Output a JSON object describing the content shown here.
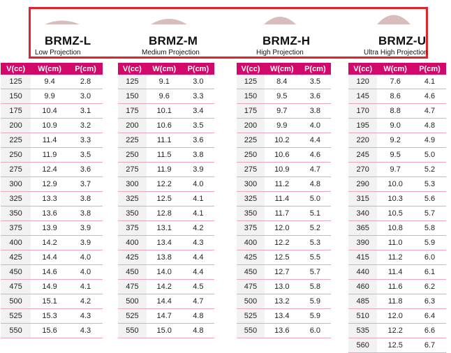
{
  "products": [
    {
      "name": "BRMZ-L",
      "subtitle": "Low Projection"
    },
    {
      "name": "BRMZ-M",
      "subtitle": "Medium Projection"
    },
    {
      "name": "BRMZ-H",
      "subtitle": "High Projection"
    },
    {
      "name": "BRMZ-U",
      "subtitle": "Ultra High Projection"
    }
  ],
  "tables": [
    {
      "headers": [
        "V(cc)",
        "W(cm)",
        "P(cm)"
      ],
      "rows": [
        [
          "125",
          "9.4",
          "2.8"
        ],
        [
          "150",
          "9.9",
          "3.0"
        ],
        [
          "175",
          "10.4",
          "3.1"
        ],
        [
          "200",
          "10.9",
          "3.2"
        ],
        [
          "225",
          "11.4",
          "3.3"
        ],
        [
          "250",
          "11.9",
          "3.5"
        ],
        [
          "275",
          "12.4",
          "3.6"
        ],
        [
          "300",
          "12.9",
          "3.7"
        ],
        [
          "325",
          "13.3",
          "3.8"
        ],
        [
          "350",
          "13.6",
          "3.8"
        ],
        [
          "375",
          "13.9",
          "3.9"
        ],
        [
          "400",
          "14.2",
          "3.9"
        ],
        [
          "425",
          "14.4",
          "4.0"
        ],
        [
          "450",
          "14.6",
          "4.0"
        ],
        [
          "475",
          "14.9",
          "4.1"
        ],
        [
          "500",
          "15.1",
          "4.2"
        ],
        [
          "525",
          "15.3",
          "4.3"
        ],
        [
          "550",
          "15.6",
          "4.3"
        ]
      ]
    },
    {
      "headers": [
        "V(cc)",
        "W(cm)",
        "P(cm)"
      ],
      "rows": [
        [
          "125",
          "9.1",
          "3.0"
        ],
        [
          "150",
          "9.6",
          "3.3"
        ],
        [
          "175",
          "10.1",
          "3.4"
        ],
        [
          "200",
          "10.6",
          "3.5"
        ],
        [
          "225",
          "11.1",
          "3.6"
        ],
        [
          "250",
          "11.5",
          "3.8"
        ],
        [
          "275",
          "11.9",
          "3.9"
        ],
        [
          "300",
          "12.2",
          "4.0"
        ],
        [
          "325",
          "12.5",
          "4.1"
        ],
        [
          "350",
          "12.8",
          "4.1"
        ],
        [
          "375",
          "13.1",
          "4.2"
        ],
        [
          "400",
          "13.4",
          "4.3"
        ],
        [
          "425",
          "13.8",
          "4.4"
        ],
        [
          "450",
          "14.0",
          "4.4"
        ],
        [
          "475",
          "14.2",
          "4.5"
        ],
        [
          "500",
          "14.4",
          "4.7"
        ],
        [
          "525",
          "14.7",
          "4.8"
        ],
        [
          "550",
          "15.0",
          "4.8"
        ]
      ]
    },
    {
      "headers": [
        "V(cc)",
        "W(cm)",
        "P(cm)"
      ],
      "rows": [
        [
          "125",
          "8.4",
          "3.5"
        ],
        [
          "150",
          "9.5",
          "3.6"
        ],
        [
          "175",
          "9.7",
          "3.8"
        ],
        [
          "200",
          "9.9",
          "4.0"
        ],
        [
          "225",
          "10.2",
          "4.4"
        ],
        [
          "250",
          "10.6",
          "4.6"
        ],
        [
          "275",
          "10.9",
          "4.7"
        ],
        [
          "300",
          "11.2",
          "4.8"
        ],
        [
          "325",
          "11.4",
          "5.0"
        ],
        [
          "350",
          "11.7",
          "5.1"
        ],
        [
          "375",
          "12.0",
          "5.2"
        ],
        [
          "400",
          "12.2",
          "5.3"
        ],
        [
          "425",
          "12.5",
          "5.5"
        ],
        [
          "450",
          "12.7",
          "5.7"
        ],
        [
          "475",
          "13.0",
          "5.8"
        ],
        [
          "500",
          "13.2",
          "5.9"
        ],
        [
          "525",
          "13.4",
          "5.9"
        ],
        [
          "550",
          "13.6",
          "6.0"
        ]
      ]
    },
    {
      "headers": [
        "V(cc)",
        "W(cm)",
        "P(cm)"
      ],
      "rows": [
        [
          "120",
          "7.6",
          "4.1"
        ],
        [
          "145",
          "8.6",
          "4.6"
        ],
        [
          "170",
          "8.8",
          "4.7"
        ],
        [
          "195",
          "9.0",
          "4.8"
        ],
        [
          "220",
          "9.2",
          "4.9"
        ],
        [
          "245",
          "9.5",
          "5.0"
        ],
        [
          "270",
          "9.7",
          "5.2"
        ],
        [
          "290",
          "10.0",
          "5.3"
        ],
        [
          "315",
          "10.3",
          "5.6"
        ],
        [
          "340",
          "10.5",
          "5.7"
        ],
        [
          "365",
          "10.8",
          "5.8"
        ],
        [
          "390",
          "11.0",
          "5.9"
        ],
        [
          "415",
          "11.2",
          "6.0"
        ],
        [
          "440",
          "11.4",
          "6.1"
        ],
        [
          "460",
          "11.6",
          "6.2"
        ],
        [
          "485",
          "11.8",
          "6.3"
        ],
        [
          "510",
          "12.0",
          "6.4"
        ],
        [
          "535",
          "12.2",
          "6.6"
        ],
        [
          "560",
          "12.5",
          "6.7"
        ]
      ]
    }
  ],
  "colors": {
    "header_bg": "#d3086b",
    "frame": "#e0242b",
    "shape": "#d9bcbc"
  }
}
